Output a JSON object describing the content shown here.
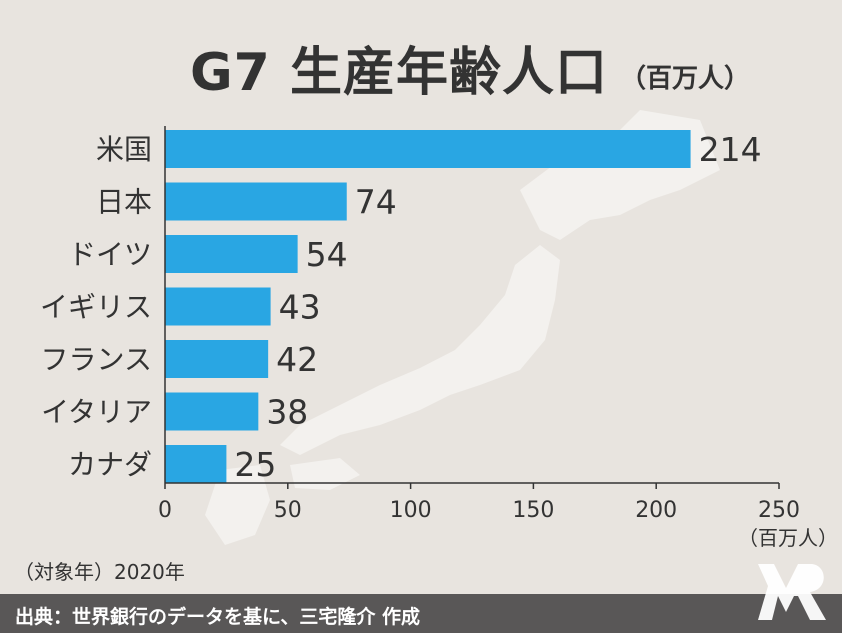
{
  "title": "G7 生産年齢人口",
  "title_unit": "（百万人）",
  "note": "（対象年）2020年",
  "source": "出典：世界銀行のデータを基に、三宅隆介 作成",
  "axis_unit": "（百万人）",
  "colors": {
    "bar": "#29a6e3",
    "background": "#e8e4df",
    "map": "#f3f1ee",
    "text": "#333333",
    "footer": "#595757"
  },
  "chart_data": {
    "type": "bar",
    "orientation": "horizontal",
    "categories": [
      "米国",
      "日本",
      "ドイツ",
      "イギリス",
      "フランス",
      "イタリア",
      "カナダ"
    ],
    "values": [
      214,
      74,
      54,
      43,
      42,
      38,
      25
    ],
    "xlim": [
      0,
      250
    ],
    "xticks": [
      0,
      50,
      100,
      150,
      200,
      250
    ],
    "grid": false,
    "legend": "none"
  }
}
